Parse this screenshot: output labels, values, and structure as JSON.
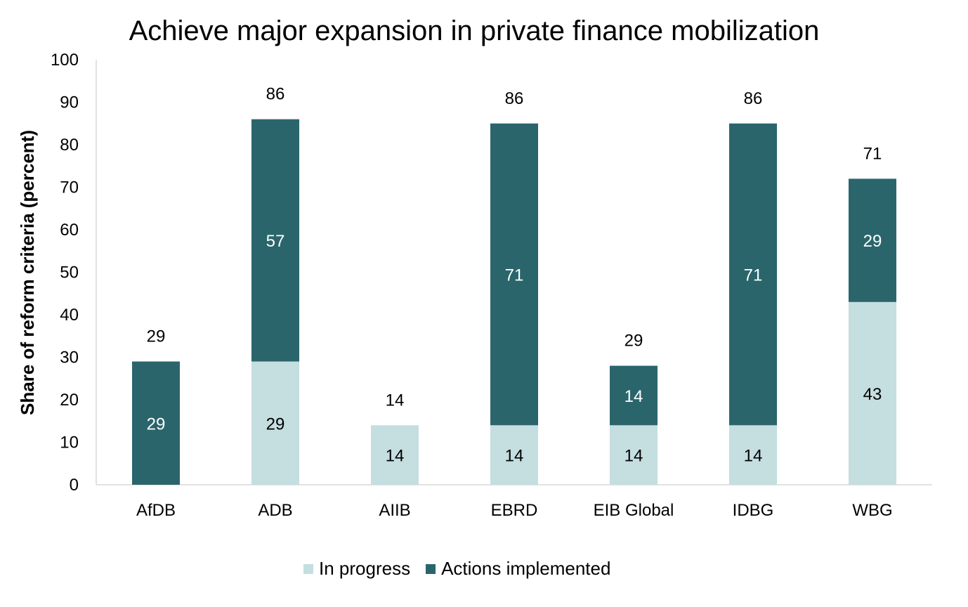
{
  "chart_data": {
    "type": "bar",
    "stacked": true,
    "title": "Achieve major expansion in private finance mobilization",
    "xlabel": "",
    "ylabel": "Share of reform criteria (percent)",
    "ylim": [
      0,
      100
    ],
    "yticks": [
      0,
      10,
      20,
      30,
      40,
      50,
      60,
      70,
      80,
      90,
      100
    ],
    "grid": false,
    "legend_position": "bottom",
    "categories": [
      "AfDB",
      "ADB",
      "AIIB",
      "EBRD",
      "EIB Global",
      "IDBG",
      "WBG"
    ],
    "series": [
      {
        "name": "In progress",
        "color": "#c5dee0",
        "label_color": "#000000",
        "values": [
          0,
          29,
          14,
          14,
          14,
          14,
          43
        ]
      },
      {
        "name": "Actions implemented",
        "color": "#2b656c",
        "label_color": "#ffffff",
        "values": [
          29,
          57,
          0,
          71,
          14,
          71,
          29
        ]
      }
    ],
    "totals": [
      29,
      86,
      14,
      86,
      29,
      86,
      71
    ]
  }
}
